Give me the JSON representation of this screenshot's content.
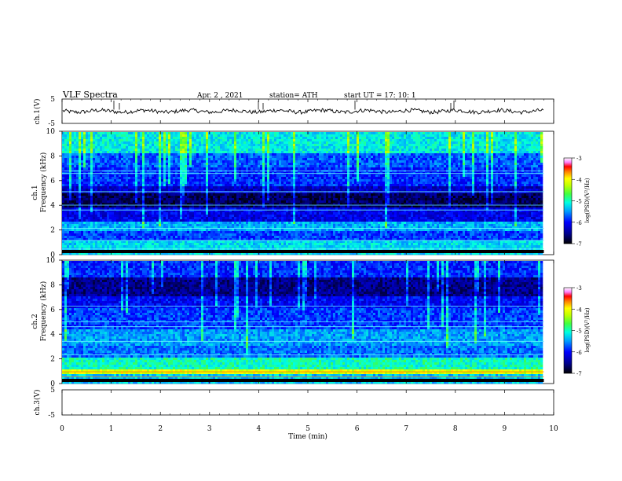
{
  "header": {
    "title": "VLF  Spectra",
    "date": "Apr. 2  , 2021",
    "station": "station= ATH",
    "start": "start  UT  =    17: 10: 1"
  },
  "chart_data": [
    {
      "type": "line",
      "panel": "ch1-waveform",
      "ylabel": "ch.1(V)",
      "ylim": [
        -5,
        5
      ],
      "yticks": [
        "5",
        "-5"
      ],
      "xlim": [
        0,
        10
      ],
      "mean_value": 0,
      "color": "#000000"
    },
    {
      "type": "heatmap",
      "panel": "ch1-spectrogram",
      "ylabel_lines": [
        "ch.1",
        "Frequency  (kHz)"
      ],
      "ylim": [
        0,
        10
      ],
      "yticks": [
        "0",
        "2",
        "4",
        "6",
        "8",
        "10"
      ],
      "xlim": [
        0,
        10
      ],
      "data_end_min": 9.8,
      "colorbar": {
        "label": "log(PSD)(V²/Hz)",
        "range": [
          -7,
          -3
        ],
        "ticks": [
          "-3",
          "-4",
          "-5",
          "-6",
          "-7"
        ],
        "colormap": "jet-like"
      }
    },
    {
      "type": "heatmap",
      "panel": "ch2-spectrogram",
      "ylabel_lines": [
        "ch.2",
        "Frequency  (kHz)"
      ],
      "ylim": [
        0,
        10
      ],
      "yticks": [
        "0",
        "2",
        "4",
        "6",
        "8",
        "10"
      ],
      "xlim": [
        0,
        10
      ],
      "data_end_min": 9.8,
      "colorbar": {
        "label": "log(PSD)(V²/Hz)",
        "range": [
          -7,
          -3
        ],
        "ticks": [
          "-3",
          "-4",
          "-5",
          "-6",
          "-7"
        ],
        "colormap": "jet-like"
      }
    },
    {
      "type": "line",
      "panel": "ch3-waveform",
      "ylabel": "ch.3(V)",
      "ylim": [
        -5,
        5
      ],
      "yticks": [
        "5",
        "-5"
      ],
      "xlim": [
        0,
        10
      ],
      "mean_value": 0,
      "color": "#000000"
    }
  ],
  "xaxis": {
    "label": "Time  (min)",
    "ticks": [
      "0",
      "1",
      "2",
      "3",
      "4",
      "5",
      "6",
      "7",
      "8",
      "9",
      "10"
    ]
  }
}
